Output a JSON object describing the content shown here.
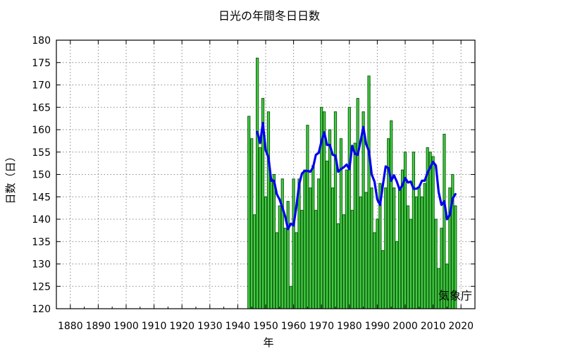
{
  "chart_data": {
    "type": "bar",
    "title": "日光の年間冬日日数",
    "xlabel": "年",
    "ylabel": "日数（日）",
    "credit": "気象庁",
    "xlim": [
      1875,
      2025
    ],
    "ylim": [
      120,
      180
    ],
    "xticks": [
      1880,
      1890,
      1900,
      1910,
      1920,
      1930,
      1940,
      1950,
      1960,
      1970,
      1980,
      1990,
      2000,
      2010,
      2020
    ],
    "yticks": [
      120,
      125,
      130,
      135,
      140,
      145,
      150,
      155,
      160,
      165,
      170,
      175,
      180
    ],
    "grid": true,
    "x": [
      1944,
      1945,
      1946,
      1947,
      1948,
      1949,
      1950,
      1951,
      1952,
      1953,
      1954,
      1955,
      1956,
      1957,
      1958,
      1959,
      1960,
      1961,
      1962,
      1963,
      1964,
      1965,
      1966,
      1967,
      1968,
      1969,
      1970,
      1971,
      1972,
      1973,
      1974,
      1975,
      1976,
      1977,
      1978,
      1979,
      1980,
      1981,
      1982,
      1983,
      1984,
      1985,
      1986,
      1987,
      1988,
      1989,
      1990,
      1991,
      1992,
      1993,
      1994,
      1995,
      1996,
      1997,
      1998,
      1999,
      2000,
      2001,
      2002,
      2003,
      2004,
      2005,
      2006,
      2007,
      2008,
      2009,
      2010,
      2011,
      2012,
      2013,
      2014,
      2015,
      2016,
      2017,
      2018,
      2019,
      2020,
      2021
    ],
    "series": [
      {
        "type": "bar",
        "values": [
          163,
          158,
          141,
          176,
          156,
          167,
          145,
          164,
          149,
          150,
          137,
          143,
          149,
          138,
          144,
          125,
          149,
          137,
          149,
          142,
          151,
          161,
          147,
          152,
          142,
          149,
          165,
          164,
          153,
          160,
          147,
          164,
          139,
          158,
          141,
          151,
          165,
          142,
          157,
          167,
          145,
          164,
          146,
          172,
          147,
          137,
          140,
          148,
          133,
          147,
          158,
          162,
          147,
          135,
          147,
          151,
          155,
          143,
          140,
          155,
          145,
          147,
          145,
          148,
          156,
          155,
          154,
          140,
          129,
          138,
          159,
          130,
          147,
          150,
          143,
          null,
          null,
          null
        ]
      },
      {
        "type": "line",
        "values": [
          null,
          null,
          null,
          159.5,
          157.0,
          161.5,
          155.4,
          153.8,
          148.6,
          148.6,
          145.6,
          144.4,
          142.6,
          140.6,
          137.8,
          139.0,
          138.6,
          142.8,
          147.8,
          150.2,
          150.8,
          150.8,
          150.6,
          151.6,
          154.4,
          154.8,
          157.4,
          159.4,
          156.6,
          156.6,
          154.4,
          154.2,
          150.6,
          151.2,
          151.6,
          152.2,
          151.2,
          156.4,
          154.6,
          154.4,
          157.4,
          160.6,
          156.8,
          155.2,
          150.0,
          148.4,
          144.4,
          143.2,
          147.6,
          151.8,
          151.4,
          148.6,
          149.8,
          148.4,
          146.6,
          147.6,
          149.2,
          148.2,
          148.4,
          146.8,
          146.8,
          147.2,
          148.6,
          148.6,
          150.4,
          151.6,
          152.8,
          152.0,
          146.0,
          143.2,
          144.0,
          140.0,
          141.0,
          144.6,
          145.6,
          null,
          null,
          null
        ]
      }
    ]
  }
}
